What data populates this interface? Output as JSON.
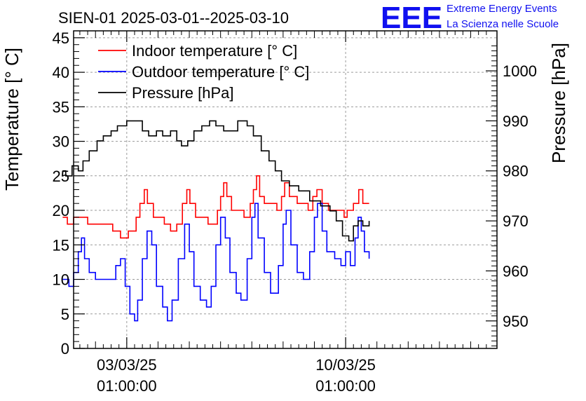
{
  "chart_data": {
    "type": "line",
    "title": "SIEN-01 2025-03-01--2025-03-10",
    "ylabel": "Temperature [° C]",
    "y2label": "Pressure [hPa]",
    "xlabel": "",
    "ylim": [
      0,
      46
    ],
    "y2lim": [
      944.5,
      1008
    ],
    "xlim": [
      -1.7,
      11.84
    ],
    "grid": true,
    "legend_position": "top-left",
    "x_ticks": [
      {
        "x": 0,
        "lines": [
          "03/03/25",
          "01:00:00"
        ]
      },
      {
        "x": 7,
        "lines": [
          "10/03/25",
          "01:00:00"
        ]
      }
    ],
    "y_ticks": [
      0,
      5,
      10,
      15,
      20,
      25,
      30,
      35,
      40,
      45
    ],
    "y2_ticks": [
      950,
      960,
      970,
      980,
      990,
      1000
    ],
    "series": [
      {
        "name": "Indoor temperature [° C]",
        "color": "#ff0000",
        "axis": "left",
        "points": [
          [
            -2.05,
            19
          ],
          [
            -1.9,
            18
          ],
          [
            -1.7,
            19
          ],
          [
            -1.25,
            18
          ],
          [
            -0.45,
            17
          ],
          [
            -0.2,
            16
          ],
          [
            0.05,
            17
          ],
          [
            0.3,
            19
          ],
          [
            0.42,
            21
          ],
          [
            0.56,
            23
          ],
          [
            0.66,
            21
          ],
          [
            0.85,
            19
          ],
          [
            1.2,
            18
          ],
          [
            1.4,
            17
          ],
          [
            1.6,
            18
          ],
          [
            1.78,
            21
          ],
          [
            1.92,
            23
          ],
          [
            2.02,
            21
          ],
          [
            2.2,
            19
          ],
          [
            2.6,
            18
          ],
          [
            2.9,
            20
          ],
          [
            3.0,
            22
          ],
          [
            3.1,
            24
          ],
          [
            3.2,
            22
          ],
          [
            3.35,
            20
          ],
          [
            3.75,
            19
          ],
          [
            3.95,
            21
          ],
          [
            4.05,
            23
          ],
          [
            4.15,
            25
          ],
          [
            4.25,
            22
          ],
          [
            4.4,
            21
          ],
          [
            4.8,
            20
          ],
          [
            4.95,
            22
          ],
          [
            5.05,
            24
          ],
          [
            5.2,
            22
          ],
          [
            5.45,
            21
          ],
          [
            5.8,
            20
          ],
          [
            5.95,
            22
          ],
          [
            6.08,
            23
          ],
          [
            6.25,
            21
          ],
          [
            6.45,
            20
          ],
          [
            6.85,
            20
          ],
          [
            6.95,
            19
          ],
          [
            7.05,
            20
          ],
          [
            7.25,
            21
          ],
          [
            7.42,
            23
          ],
          [
            7.55,
            21
          ],
          [
            7.75,
            21
          ]
        ]
      },
      {
        "name": "Outdoor temperature [° C]",
        "color": "#0000ff",
        "axis": "left",
        "points": [
          [
            -2.05,
            10
          ],
          [
            -1.85,
            9
          ],
          [
            -1.7,
            11
          ],
          [
            -1.55,
            14
          ],
          [
            -1.45,
            16
          ],
          [
            -1.35,
            13
          ],
          [
            -1.2,
            11
          ],
          [
            -1.0,
            10
          ],
          [
            -0.5,
            10
          ],
          [
            -0.35,
            12
          ],
          [
            -0.2,
            13
          ],
          [
            -0.05,
            9
          ],
          [
            0.1,
            5
          ],
          [
            0.25,
            4
          ],
          [
            0.35,
            7
          ],
          [
            0.5,
            13
          ],
          [
            0.65,
            17
          ],
          [
            0.8,
            15
          ],
          [
            0.95,
            9
          ],
          [
            1.15,
            6
          ],
          [
            1.3,
            4
          ],
          [
            1.45,
            7
          ],
          [
            1.65,
            13
          ],
          [
            1.85,
            18
          ],
          [
            2.0,
            14
          ],
          [
            2.15,
            9
          ],
          [
            2.35,
            7
          ],
          [
            2.55,
            6
          ],
          [
            2.7,
            9
          ],
          [
            2.85,
            15
          ],
          [
            3.0,
            19
          ],
          [
            3.15,
            16
          ],
          [
            3.3,
            11
          ],
          [
            3.5,
            8
          ],
          [
            3.65,
            7
          ],
          [
            3.85,
            13
          ],
          [
            4.0,
            19
          ],
          [
            4.1,
            21
          ],
          [
            4.2,
            16
          ],
          [
            4.4,
            11
          ],
          [
            4.6,
            8
          ],
          [
            4.85,
            12
          ],
          [
            5.0,
            18
          ],
          [
            5.1,
            20
          ],
          [
            5.25,
            15
          ],
          [
            5.45,
            11
          ],
          [
            5.65,
            10
          ],
          [
            5.85,
            14
          ],
          [
            6.0,
            19
          ],
          [
            6.1,
            21
          ],
          [
            6.25,
            17
          ],
          [
            6.4,
            14
          ],
          [
            6.65,
            13
          ],
          [
            6.85,
            12
          ],
          [
            7.0,
            14
          ],
          [
            7.15,
            12
          ],
          [
            7.3,
            16
          ],
          [
            7.4,
            19
          ],
          [
            7.5,
            17
          ],
          [
            7.6,
            14
          ],
          [
            7.75,
            13
          ]
        ]
      },
      {
        "name": "Pressure [hPa]",
        "color": "#000000",
        "axis": "right",
        "points": [
          [
            -2.05,
            980
          ],
          [
            -1.95,
            979
          ],
          [
            -1.75,
            981
          ],
          [
            -1.55,
            980
          ],
          [
            -1.4,
            982
          ],
          [
            -1.2,
            984
          ],
          [
            -0.95,
            986
          ],
          [
            -0.75,
            987
          ],
          [
            -0.5,
            988
          ],
          [
            -0.3,
            989
          ],
          [
            0.0,
            990
          ],
          [
            0.3,
            990
          ],
          [
            0.5,
            988
          ],
          [
            0.7,
            987
          ],
          [
            0.95,
            988
          ],
          [
            1.15,
            987
          ],
          [
            1.4,
            988
          ],
          [
            1.6,
            986
          ],
          [
            1.75,
            985
          ],
          [
            1.95,
            986
          ],
          [
            2.15,
            988
          ],
          [
            2.4,
            989
          ],
          [
            2.65,
            990
          ],
          [
            2.85,
            989
          ],
          [
            3.1,
            988
          ],
          [
            3.3,
            988
          ],
          [
            3.55,
            990
          ],
          [
            3.85,
            989
          ],
          [
            4.05,
            987
          ],
          [
            4.3,
            984
          ],
          [
            4.55,
            982
          ],
          [
            4.75,
            980
          ],
          [
            4.95,
            978
          ],
          [
            5.2,
            977
          ],
          [
            5.5,
            976
          ],
          [
            5.85,
            974
          ],
          [
            6.2,
            973
          ],
          [
            6.5,
            972
          ],
          [
            6.7,
            970
          ],
          [
            6.9,
            967
          ],
          [
            7.1,
            966
          ],
          [
            7.25,
            969
          ],
          [
            7.4,
            970
          ],
          [
            7.55,
            969
          ],
          [
            7.75,
            970
          ]
        ]
      }
    ]
  },
  "logo": {
    "mark": "EEE",
    "line1": "Extreme Energy Events",
    "line2": "La Scienza nelle Scuole",
    "color": "#1010f0"
  }
}
